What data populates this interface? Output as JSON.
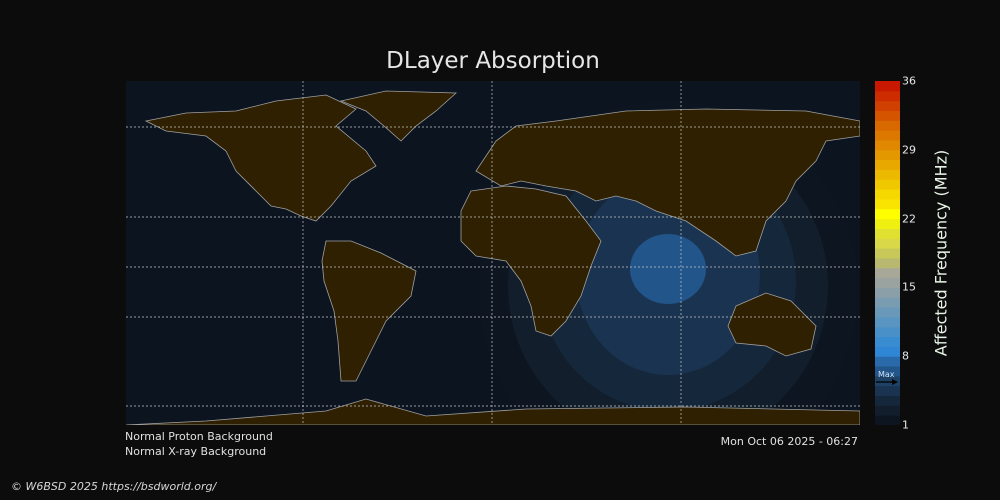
{
  "title": "DLayer Absorption",
  "colorbar": {
    "label": "Affected Frequency (MHz)",
    "min": 1,
    "max": 36,
    "ticks": [
      "36",
      "29",
      "22",
      "15",
      "8",
      "1"
    ],
    "max_marker_label": "Max",
    "max_marker_value": 5,
    "colors": [
      "#0d1520",
      "#121e2c",
      "#15273a",
      "#1a3350",
      "#1d4266",
      "#22558a",
      "#2a6aaa",
      "#2f86d4",
      "#3a8cd0",
      "#4a90c8",
      "#5a94c0",
      "#6a98b8",
      "#7a9cb0",
      "#8a9fa8",
      "#9aa3a0",
      "#a8a898",
      "#b8b870",
      "#c8c858",
      "#d8d848",
      "#e0e030",
      "#f0f010",
      "#ffff00",
      "#f8e400",
      "#f4d800",
      "#f0c800",
      "#ecb800",
      "#e8a800",
      "#e49800",
      "#e08800",
      "#dc7800",
      "#d86800",
      "#d45400",
      "#d04000",
      "#cc2c00",
      "#c81800"
    ]
  },
  "map_colors": {
    "ocean": "#0c1420",
    "land": "#2e2000",
    "coast": "#a0a0a0",
    "grid": "#c8c8c8"
  },
  "status": {
    "proton": "Normal Proton Background",
    "xray": "Normal X-ray Background",
    "timestamp": "Mon Oct 06 2025 - 06:27"
  },
  "footer": {
    "copyright": "© W6BSD 2025 https://bsdworld.org/"
  }
}
